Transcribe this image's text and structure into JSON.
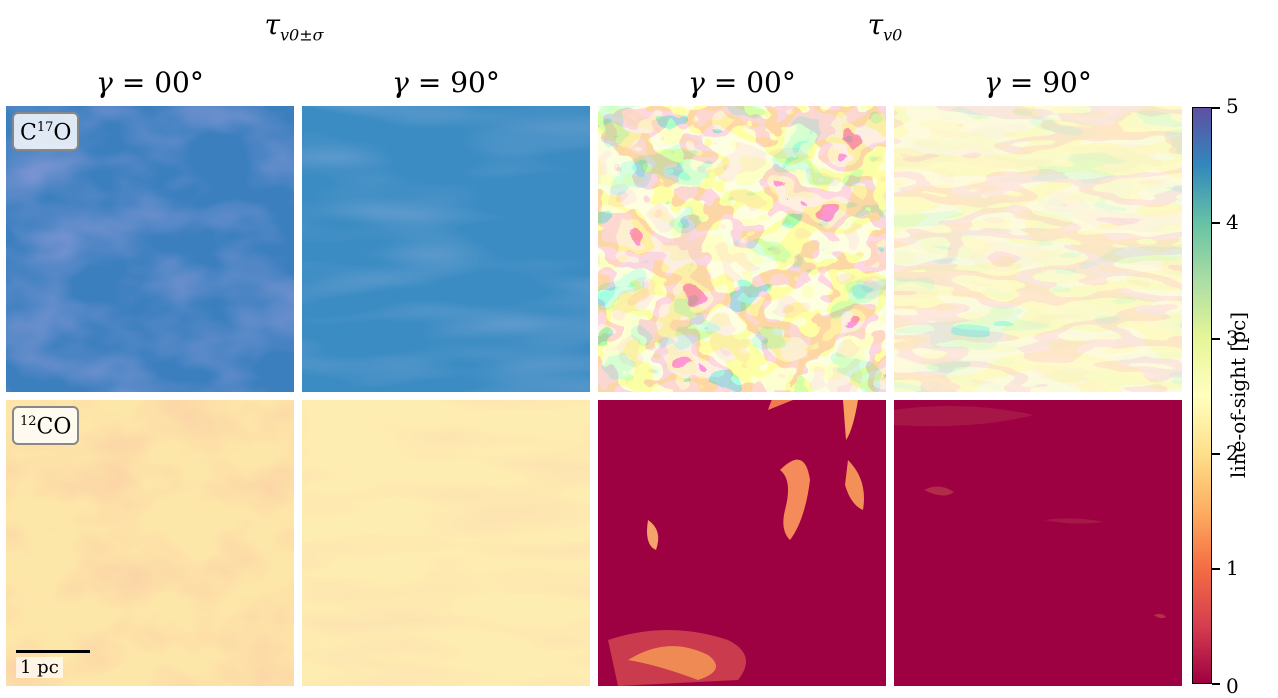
{
  "group_titles": {
    "left": {
      "base": "τ",
      "sub": "v0±σ"
    },
    "right": {
      "base": "τ",
      "sub": "v0"
    }
  },
  "columns": [
    {
      "gamma_symbol": "γ",
      "equals": "= ",
      "angle": "00°"
    },
    {
      "gamma_symbol": "γ",
      "equals": "= ",
      "angle": "90°"
    },
    {
      "gamma_symbol": "γ",
      "equals": "= ",
      "angle": "00°"
    },
    {
      "gamma_symbol": "γ",
      "equals": "= ",
      "angle": "90°"
    }
  ],
  "rows": [
    {
      "label_base": "C",
      "label_sup": "17",
      "label_end": "O"
    },
    {
      "label_base": "",
      "label_sup": "12",
      "label_end": "CO"
    }
  ],
  "scale_bar": {
    "text": "1 pc"
  },
  "colorbar": {
    "label": "line-of-sight [pc]",
    "ticks": [
      "0",
      "1",
      "2",
      "3",
      "4",
      "5"
    ],
    "colormap": "Spectral",
    "min": 0,
    "max": 5
  }
}
